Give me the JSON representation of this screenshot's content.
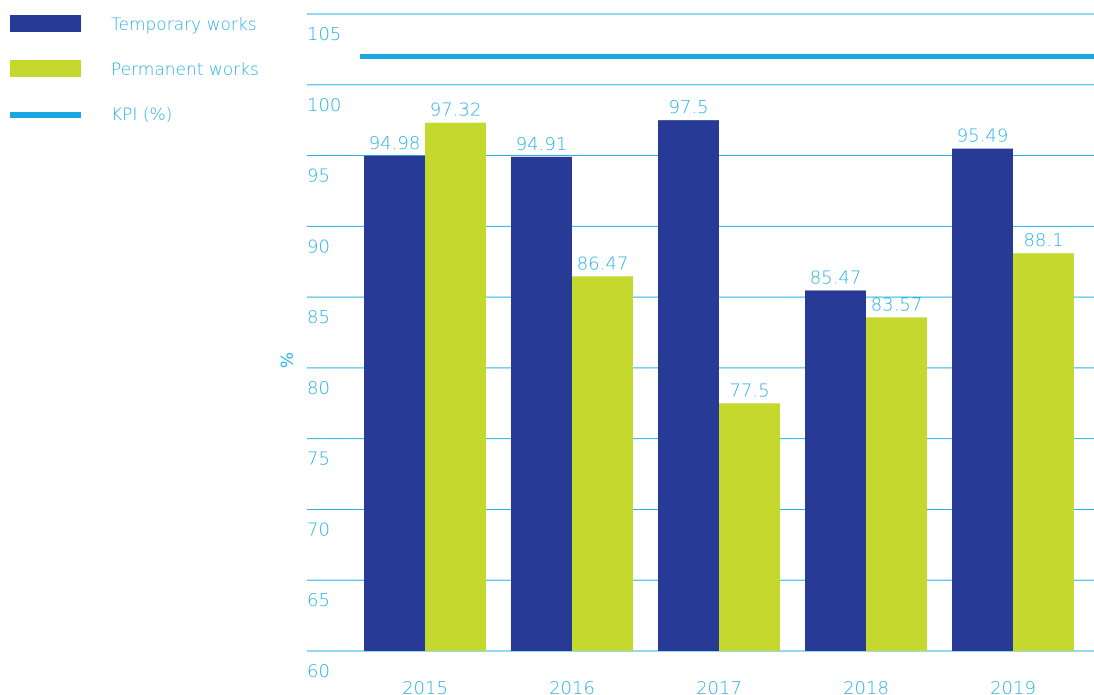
{
  "chart_data": {
    "type": "bar",
    "categories": [
      "2015",
      "2016",
      "2017",
      "2018",
      "2019"
    ],
    "series": [
      {
        "name": "Temporary works",
        "values": [
          94.98,
          94.91,
          97.5,
          85.47,
          95.49
        ],
        "color": "#263a96"
      },
      {
        "name": "Permanent works",
        "values": [
          97.32,
          86.47,
          77.5,
          83.57,
          88.1
        ],
        "color": "#c5d82e"
      }
    ],
    "kpi": {
      "name": "KPI (%)",
      "value": 102,
      "color": "#1aa7e2"
    },
    "ylabel": "%",
    "ylim": [
      60,
      105
    ],
    "yticks": [
      60,
      65,
      70,
      75,
      80,
      85,
      90,
      95,
      100,
      105
    ],
    "grid": true,
    "legend_position": "top-left",
    "text_color": "#29b2e6",
    "grid_color": "#29b2e6"
  }
}
